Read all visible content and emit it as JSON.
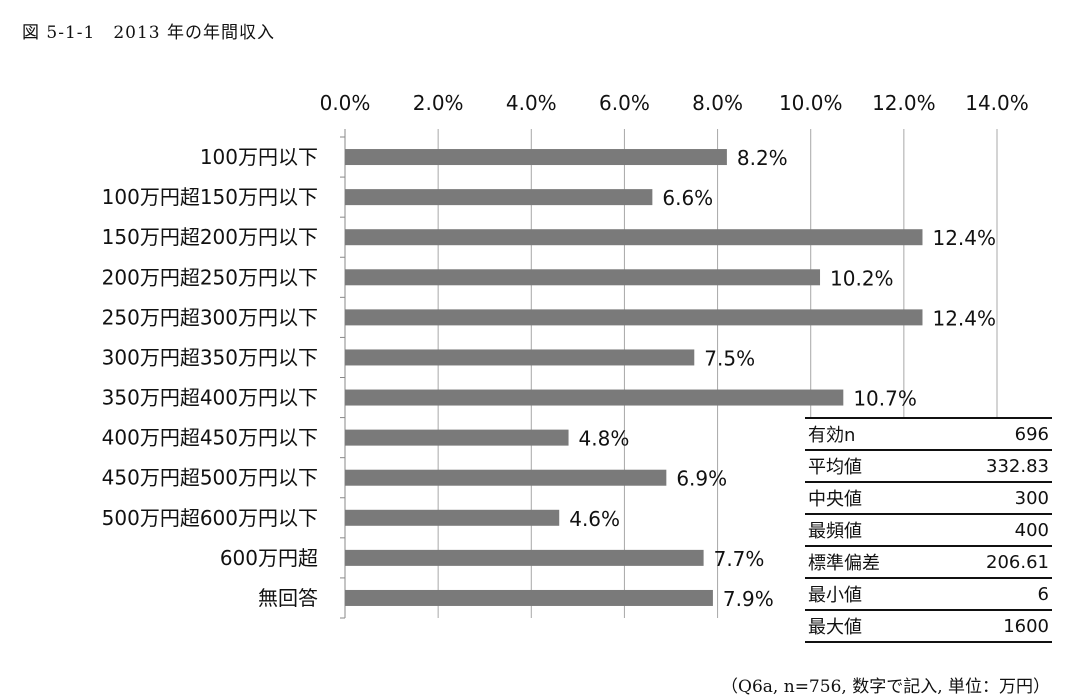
{
  "figure_title": "図 5-1-1　2013 年の年間収入",
  "note": "（Q6a, n=756, 数字で記入, 単位：万円）",
  "chart_data": {
    "type": "bar",
    "orientation": "horizontal",
    "title": "",
    "xlabel": "",
    "ylabel": "",
    "xlim": [
      0,
      14
    ],
    "x_ticks": [
      "0.0%",
      "2.0%",
      "4.0%",
      "6.0%",
      "8.0%",
      "10.0%",
      "12.0%",
      "14.0%"
    ],
    "x_axis_position": "top",
    "grid": true,
    "bar_color": "#7a7a7a",
    "categories": [
      "100万円以下",
      "100万円超150万円以下",
      "150万円超200万円以下",
      "200万円超250万円以下",
      "250万円超300万円以下",
      "300万円超350万円以下",
      "350万円超400万円以下",
      "400万円超450万円以下",
      "450万円超500万円以下",
      "500万円超600万円以下",
      "600万円超",
      "無回答"
    ],
    "values": [
      8.2,
      6.6,
      12.4,
      10.2,
      12.4,
      7.5,
      10.7,
      4.8,
      6.9,
      4.6,
      7.7,
      7.9
    ],
    "value_labels": [
      "8.2%",
      "6.6%",
      "12.4%",
      "10.2%",
      "12.4%",
      "7.5%",
      "10.7%",
      "4.8%",
      "6.9%",
      "4.6%",
      "7.7%",
      "7.9%"
    ]
  },
  "stats": [
    {
      "label": "有効n",
      "value": "696"
    },
    {
      "label": "平均値",
      "value": "332.83"
    },
    {
      "label": "中央値",
      "value": "300"
    },
    {
      "label": "最頻値",
      "value": "400"
    },
    {
      "label": "標準偏差",
      "value": "206.61"
    },
    {
      "label": "最小値",
      "value": "6"
    },
    {
      "label": "最大値",
      "value": "1600"
    }
  ]
}
